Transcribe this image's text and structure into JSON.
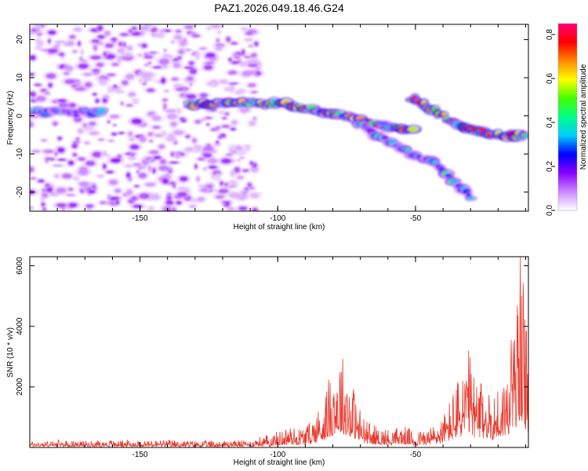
{
  "chart_data": [
    {
      "type": "heatmap",
      "title": "PAZ1.2026.049.18.46.G24",
      "xlabel": "Height of straight line (km)",
      "ylabel": "Frequency (Hz)",
      "xlim": [
        -190,
        -9
      ],
      "ylim": [
        -25,
        24
      ],
      "xticks": [
        -150,
        -100,
        -50
      ],
      "yticks": [
        20,
        10,
        0,
        -10,
        -20
      ],
      "colorbar": {
        "label": "Normalized spectral amplitude",
        "range": [
          0,
          0.85
        ],
        "ticks": [
          0.0,
          0.2,
          0.4,
          0.6,
          0.8
        ],
        "colors": [
          "#ffffff",
          "#cc88ff",
          "#8800ff",
          "#0000ff",
          "#00ccff",
          "#00ff88",
          "#44ff00",
          "#ffff00",
          "#ff8800",
          "#ff0000",
          "#ff0077"
        ]
      },
      "features": [
        {
          "name": "noise region",
          "x_range": [
            -190,
            -107
          ],
          "y_range": [
            -25,
            24
          ],
          "amplitude": 0.1
        },
        {
          "name": "flat band",
          "points": [
            [
              -190,
              1
            ],
            [
              -163,
              1
            ]
          ],
          "amplitude": 0.25
        },
        {
          "name": "main track",
          "points": [
            [
              -132,
              3
            ],
            [
              -112,
              3.5
            ],
            [
              -97,
              3
            ],
            [
              -80,
              0.5
            ],
            [
              -65,
              -2
            ],
            [
              -50,
              -4
            ]
          ],
          "amplitude": 0.5
        },
        {
          "name": "upper branch",
          "points": [
            [
              -51,
              4.5
            ],
            [
              -42,
              1
            ],
            [
              -33,
              -3
            ],
            [
              -20,
              -5
            ],
            [
              -9,
              -5
            ]
          ],
          "amplitude": 0.6
        },
        {
          "name": "lower branch",
          "points": [
            [
              -71,
              -2
            ],
            [
              -57,
              -8
            ],
            [
              -42,
              -13
            ],
            [
              -29,
              -22
            ]
          ],
          "amplitude": 0.3
        }
      ]
    },
    {
      "type": "line",
      "xlabel": "Height of straight line (km)",
      "ylabel": "SNR (10 * v/v)",
      "xlim": [
        -190,
        -9
      ],
      "ylim": [
        0,
        6300
      ],
      "xticks": [
        -150,
        -100,
        -50
      ],
      "yticks": [
        2000,
        4000,
        6000
      ],
      "series": [
        {
          "name": "SNR",
          "color": "#e83a2e",
          "x": [
            -190,
            -180,
            -170,
            -160,
            -150,
            -140,
            -130,
            -120,
            -110,
            -103,
            -100,
            -96,
            -92,
            -88,
            -84,
            -81,
            -79,
            -77,
            -75,
            -73,
            -71,
            -69,
            -66,
            -63,
            -60,
            -55,
            -50,
            -45,
            -40,
            -37,
            -34,
            -31,
            -29,
            -27,
            -25,
            -23,
            -21,
            -19,
            -17,
            -15,
            -13,
            -12,
            -11,
            -10,
            -9
          ],
          "y": [
            120,
            130,
            120,
            140,
            130,
            140,
            120,
            130,
            140,
            250,
            300,
            420,
            380,
            500,
            900,
            1400,
            1800,
            1900,
            1600,
            1300,
            900,
            600,
            450,
            380,
            350,
            420,
            300,
            380,
            600,
            1000,
            1400,
            1900,
            1500,
            1200,
            1300,
            1000,
            1100,
            1300,
            1500,
            2200,
            3000,
            3600,
            3300,
            2400,
            2000
          ]
        }
      ]
    }
  ]
}
